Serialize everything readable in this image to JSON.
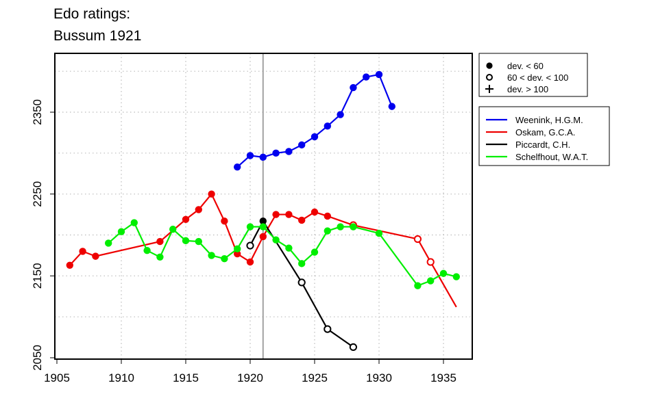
{
  "chart_data": {
    "type": "line",
    "title": "Edo ratings:",
    "subtitle": "Bussum 1921",
    "xlabel": "",
    "ylabel": "",
    "xlim": [
      1905,
      1937
    ],
    "ylim": [
      2050,
      2400
    ],
    "x_ticks": [
      "1905",
      "1910",
      "1915",
      "1920",
      "1925",
      "1930",
      "1935"
    ],
    "y_ticks": [
      "2050",
      "2150",
      "2250",
      "2350"
    ],
    "grid": true,
    "reference_line_x": 1921,
    "marker_legend": [
      {
        "symbol": "filled-circle",
        "label": "dev. < 60"
      },
      {
        "symbol": "open-circle",
        "label": "60 < dev. < 100"
      },
      {
        "symbol": "plus",
        "label": "dev. > 100"
      }
    ],
    "legend_position": "right",
    "series": [
      {
        "name": "Weenink, H.G.M.",
        "color": "#0000ee",
        "points": [
          {
            "x": 1919,
            "y": 2283,
            "m": "filled"
          },
          {
            "x": 1920,
            "y": 2297,
            "m": "filled"
          },
          {
            "x": 1921,
            "y": 2295,
            "m": "filled"
          },
          {
            "x": 1922,
            "y": 2300,
            "m": "filled"
          },
          {
            "x": 1923,
            "y": 2302,
            "m": "filled"
          },
          {
            "x": 1924,
            "y": 2310,
            "m": "filled"
          },
          {
            "x": 1925,
            "y": 2320,
            "m": "filled"
          },
          {
            "x": 1926,
            "y": 2333,
            "m": "filled"
          },
          {
            "x": 1927,
            "y": 2347,
            "m": "filled"
          },
          {
            "x": 1928,
            "y": 2380,
            "m": "filled"
          },
          {
            "x": 1929,
            "y": 2393,
            "m": "filled"
          },
          {
            "x": 1930,
            "y": 2396,
            "m": "filled"
          },
          {
            "x": 1931,
            "y": 2357,
            "m": "filled"
          }
        ]
      },
      {
        "name": "Oskam, G.C.A.",
        "color": "#ee0000",
        "points": [
          {
            "x": 1906,
            "y": 2163,
            "m": "filled"
          },
          {
            "x": 1907,
            "y": 2180,
            "m": "filled"
          },
          {
            "x": 1908,
            "y": 2174,
            "m": "filled"
          },
          {
            "x": 1913,
            "y": 2192,
            "m": "filled"
          },
          {
            "x": 1915,
            "y": 2219,
            "m": "filled"
          },
          {
            "x": 1916,
            "y": 2231,
            "m": "filled"
          },
          {
            "x": 1917,
            "y": 2250,
            "m": "filled"
          },
          {
            "x": 1918,
            "y": 2217,
            "m": "filled"
          },
          {
            "x": 1919,
            "y": 2177,
            "m": "filled"
          },
          {
            "x": 1920,
            "y": 2167,
            "m": "filled"
          },
          {
            "x": 1921,
            "y": 2198,
            "m": "filled"
          },
          {
            "x": 1922,
            "y": 2225,
            "m": "filled"
          },
          {
            "x": 1923,
            "y": 2225,
            "m": "filled"
          },
          {
            "x": 1924,
            "y": 2218,
            "m": "filled"
          },
          {
            "x": 1925,
            "y": 2228,
            "m": "filled"
          },
          {
            "x": 1926,
            "y": 2223,
            "m": "filled"
          },
          {
            "x": 1928,
            "y": 2212,
            "m": "open"
          },
          {
            "x": 1933,
            "y": 2195,
            "m": "open"
          },
          {
            "x": 1934,
            "y": 2167,
            "m": "open"
          },
          {
            "x": 1936,
            "y": 2112,
            "m": "none"
          }
        ]
      },
      {
        "name": "Piccardt, C.H.",
        "color": "#000000",
        "points": [
          {
            "x": 1920,
            "y": 2187,
            "m": "open"
          },
          {
            "x": 1921,
            "y": 2217,
            "m": "filled"
          },
          {
            "x": 1924,
            "y": 2142,
            "m": "open"
          },
          {
            "x": 1926,
            "y": 2085,
            "m": "open"
          },
          {
            "x": 1928,
            "y": 2063,
            "m": "open"
          }
        ]
      },
      {
        "name": "Schelfhout, W.A.T.",
        "color": "#00ee00",
        "points": [
          {
            "x": 1909,
            "y": 2190,
            "m": "filled"
          },
          {
            "x": 1910,
            "y": 2204,
            "m": "filled"
          },
          {
            "x": 1911,
            "y": 2215,
            "m": "filled"
          },
          {
            "x": 1912,
            "y": 2181,
            "m": "filled"
          },
          {
            "x": 1913,
            "y": 2173,
            "m": "filled"
          },
          {
            "x": 1914,
            "y": 2207,
            "m": "filled"
          },
          {
            "x": 1915,
            "y": 2193,
            "m": "filled"
          },
          {
            "x": 1916,
            "y": 2192,
            "m": "filled"
          },
          {
            "x": 1917,
            "y": 2175,
            "m": "filled"
          },
          {
            "x": 1918,
            "y": 2171,
            "m": "filled"
          },
          {
            "x": 1919,
            "y": 2183,
            "m": "filled"
          },
          {
            "x": 1920,
            "y": 2210,
            "m": "filled"
          },
          {
            "x": 1921,
            "y": 2210,
            "m": "filled"
          },
          {
            "x": 1922,
            "y": 2194,
            "m": "filled"
          },
          {
            "x": 1923,
            "y": 2184,
            "m": "filled"
          },
          {
            "x": 1924,
            "y": 2165,
            "m": "filled"
          },
          {
            "x": 1925,
            "y": 2179,
            "m": "filled"
          },
          {
            "x": 1926,
            "y": 2205,
            "m": "filled"
          },
          {
            "x": 1927,
            "y": 2210,
            "m": "filled"
          },
          {
            "x": 1928,
            "y": 2210,
            "m": "filled"
          },
          {
            "x": 1930,
            "y": 2202,
            "m": "filled"
          },
          {
            "x": 1933,
            "y": 2138,
            "m": "filled"
          },
          {
            "x": 1934,
            "y": 2144,
            "m": "filled"
          },
          {
            "x": 1935,
            "y": 2153,
            "m": "filled"
          },
          {
            "x": 1936,
            "y": 2149,
            "m": "filled"
          }
        ]
      }
    ]
  }
}
